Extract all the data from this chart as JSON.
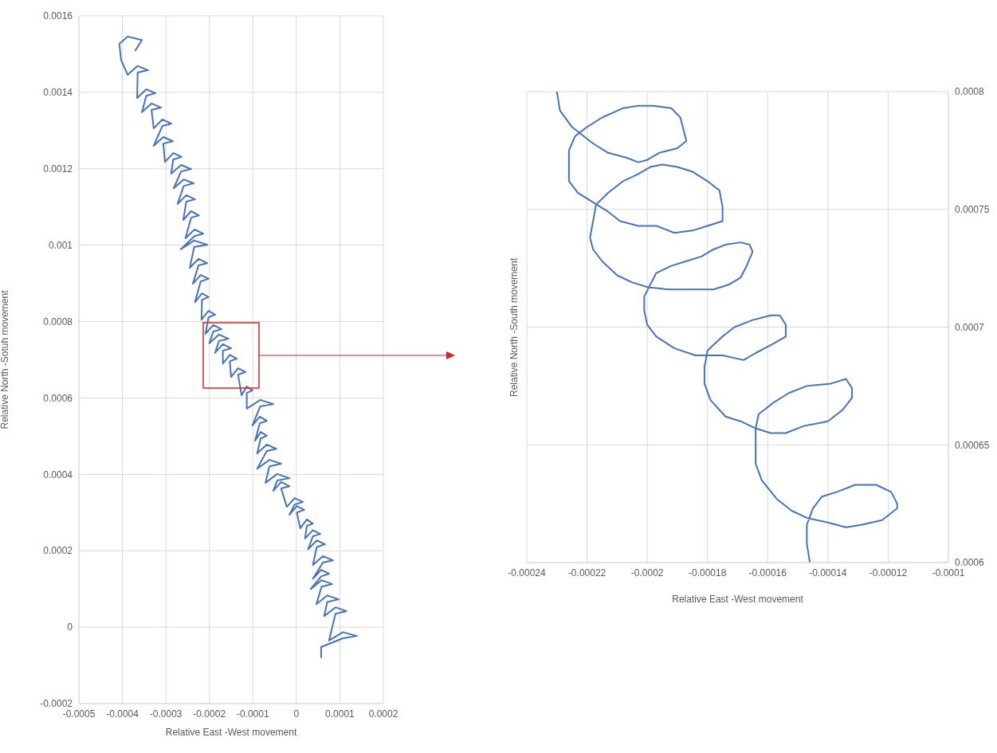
{
  "chart_data": [
    {
      "type": "line",
      "xlabel": "Relative East -West movement",
      "ylabel": "Relative North -Sotuh movement",
      "color": "#4472c4",
      "grid": true,
      "marker": "none",
      "xlim": [
        -0.0005,
        0.0002
      ],
      "xticks": [
        -0.0005,
        -0.0004,
        -0.0003,
        -0.0002,
        -0.0001,
        0,
        0.0001,
        0.0002
      ],
      "ylim": [
        -0.0002,
        0.0016
      ],
      "yticks": [
        -0.0002,
        0,
        0.0002,
        0.0004,
        0.0006,
        0.0008,
        0.001,
        0.0012,
        0.0014,
        0.0016
      ],
      "x": [
        -0.00037,
        -0.000355,
        -0.000388,
        -0.000407,
        -0.000403,
        -0.000388,
        -0.000365,
        -0.000341,
        -0.000365,
        -0.000366,
        -0.000345,
        -0.000324,
        -0.000345,
        -0.000355,
        -0.000333,
        -0.000311,
        -0.000333,
        -0.000328,
        -0.000308,
        -0.000288,
        -0.000308,
        -0.000328,
        -0.000306,
        -0.000284,
        -0.000306,
        -0.000302,
        -0.000283,
        -0.000264,
        -0.000283,
        -0.000288,
        -0.000265,
        -0.000242,
        -0.000265,
        -0.000282,
        -0.000259,
        -0.000236,
        -0.000259,
        -0.000273,
        -0.000253,
        -0.000233,
        -0.000253,
        -0.00026,
        -0.000242,
        -0.000224,
        -0.000242,
        -0.000255,
        -0.000234,
        -0.000214,
        -0.000234,
        -0.000266,
        -0.000235,
        -0.000205,
        -0.000235,
        -0.000245,
        -0.000225,
        -0.000205,
        -0.000225,
        -0.000238,
        -0.00022,
        -0.000202,
        -0.00022,
        -0.000233,
        -0.000217,
        -0.000202,
        -0.000217,
        -0.000218,
        -0.000202,
        -0.000187,
        -0.000202,
        -0.000209,
        -0.000191,
        -0.000172,
        -0.000191,
        -0.0002,
        -0.000178,
        -0.000156,
        -0.000178,
        -0.000187,
        -0.000169,
        -0.00015,
        -0.000169,
        -0.000169,
        -0.000153,
        -0.000137,
        -0.000153,
        -0.00015,
        -0.000134,
        -0.000117,
        -0.000134,
        -0.000126,
        -0.000114,
        -0.000101,
        -0.000114,
        -0.000114,
        -8.3e-05,
        -5.3e-05,
        -8.3e-05,
        -0.000101,
        -8.4e-05,
        -6.8e-05,
        -8.4e-05,
        -9.5e-05,
        -8.2e-05,
        -6.8e-05,
        -8.2e-05,
        -9e-05,
        -6.8e-05,
        -4.6e-05,
        -6.8e-05,
        -9e-05,
        -6.2e-05,
        -3.5e-05,
        -6.2e-05,
        -7.1e-05,
        -4.4e-05,
        -1.6e-05,
        -4.4e-05,
        -5.3e-05,
        -3.5e-05,
        -1.6e-05,
        -3.5e-05,
        -2.2e-05,
        -4e-06,
        1.5e-05,
        -4e-06,
        -1.6e-05,
        1e-06,
        1.8e-05,
        1e-06,
        9e-06,
        2.4e-05,
        3.8e-05,
        2.4e-05,
        2e-05,
        3.8e-05,
        5.5e-05,
        3.8e-05,
        2.7e-05,
        4.7e-05,
        6.6e-05,
        4.7e-05,
        3.8e-05,
        6.1e-05,
        8.4e-05,
        6.1e-05,
        3.8e-05,
        5.7e-05,
        7.5e-05,
        5.7e-05,
        3.3e-05,
        5.8e-05,
        8.2e-05,
        5.8e-05,
        4.6e-05,
        7.1e-05,
        9.7e-05,
        7.1e-05,
        6.4e-05,
        9e-05,
        0.000115,
        9e-05,
        7.5e-05,
        0.000107,
        0.000139,
        0.000107,
        5.7e-05,
        5.7e-05
      ],
      "values": [
        0.00151,
        0.001537,
        0.001546,
        0.001527,
        0.001485,
        0.001446,
        0.001469,
        0.001458,
        0.001452,
        0.001385,
        0.001408,
        0.001398,
        0.001391,
        0.001348,
        0.001371,
        0.00136,
        0.001354,
        0.001306,
        0.001329,
        0.001318,
        0.001312,
        0.00126,
        0.001283,
        0.001272,
        0.001266,
        0.001218,
        0.001241,
        0.001231,
        0.001224,
        0.001187,
        0.00121,
        0.001199,
        0.001193,
        0.001149,
        0.001172,
        0.001162,
        0.001155,
        0.001108,
        0.001131,
        0.00112,
        0.001114,
        0.001066,
        0.001089,
        0.001078,
        0.001072,
        0.001018,
        0.001041,
        0.00103,
        0.001024,
        0.000989,
        0.001012,
        0.001001,
        0.000995,
        0.000941,
        0.000964,
        0.000953,
        0.000947,
        0.000899,
        0.000922,
        0.000912,
        0.000905,
        0.000851,
        0.000874,
        0.000864,
        0.000857,
        0.000805,
        0.000828,
        0.000818,
        0.000811,
        0.000768,
        0.000791,
        0.00078,
        0.000774,
        0.000743,
        0.000766,
        0.000755,
        0.000749,
        0.000718,
        0.000741,
        0.00073,
        0.000724,
        0.00069,
        0.000713,
        0.000703,
        0.000696,
        0.000655,
        0.000678,
        0.000668,
        0.000661,
        0.000607,
        0.00063,
        0.00062,
        0.000613,
        0.000572,
        0.000595,
        0.000584,
        0.000578,
        0.000528,
        0.000551,
        0.00054,
        0.000534,
        0.000488,
        0.000511,
        0.000501,
        0.000494,
        0.000455,
        0.000478,
        0.000467,
        0.000461,
        0.000415,
        0.000438,
        0.000428,
        0.000421,
        0.000378,
        0.000401,
        0.00039,
        0.000384,
        0.000357,
        0.00038,
        0.000369,
        0.000363,
        0.000315,
        0.000338,
        0.000328,
        0.000321,
        0.000294,
        0.000317,
        0.000307,
        0.0003,
        0.000259,
        0.000282,
        0.000271,
        0.000265,
        0.000232,
        0.000254,
        0.000244,
        0.000238,
        0.000204,
        0.000227,
        0.000217,
        0.00021,
        0.000163,
        0.000186,
        0.000175,
        0.000169,
        0.000127,
        0.00015,
        0.00014,
        0.000133,
        0.0001,
        0.000123,
        0.000113,
        0.000106,
        6e-05,
        8.3e-05,
        7.3e-05,
        6.6e-05,
        2.9e-05,
        5.2e-05,
        4.2e-05,
        3.5e-05,
        -3.5e-05,
        -1.3e-05,
        -2.3e-05,
        -2.9e-05,
        -5.2e-05,
        -7.9e-05
      ]
    },
    {
      "type": "line",
      "xlabel": "Relative East -West movement",
      "ylabel": "Relative North -South movement",
      "color": "#4472c4",
      "grid": true,
      "marker": "none",
      "xlim": [
        -0.00024,
        -0.0001
      ],
      "xticks": [
        -0.00024,
        -0.00022,
        -0.0002,
        -0.00018,
        -0.00016,
        -0.00014,
        -0.00012,
        -0.0001
      ],
      "ylim": [
        0.0006,
        0.0008
      ],
      "yticks": [
        0.0006,
        0.00065,
        0.0007,
        0.00075,
        0.0008
      ],
      "x": [
        -0.00023,
        -0.000229,
        -0.000225,
        -0.000222,
        -0.000218,
        -0.000213,
        -0.000207,
        -0.000203,
        -0.0002,
        -0.000196,
        -0.00019,
        -0.000187,
        -0.000188,
        -0.000189,
        -0.000192,
        -0.000198,
        -0.000203,
        -0.000208,
        -0.000215,
        -0.00022,
        -0.000224,
        -0.000226,
        -0.000226,
        -0.000226,
        -0.000223,
        -0.000218,
        -0.000213,
        -0.000209,
        -0.000203,
        -0.000197,
        -0.000191,
        -0.000185,
        -0.00018,
        -0.000175,
        -0.000175,
        -0.000176,
        -0.00018,
        -0.000185,
        -0.00019,
        -0.000195,
        -0.000199,
        -0.000203,
        -0.000208,
        -0.000213,
        -0.000217,
        -0.000218,
        -0.000219,
        -0.000218,
        -0.000215,
        -0.00021,
        -0.000205,
        -0.0002,
        -0.000193,
        -0.000186,
        -0.000178,
        -0.000173,
        -0.000169,
        -0.000167,
        -0.000165,
        -0.000166,
        -0.000169,
        -0.000174,
        -0.000178,
        -0.000182,
        -0.000187,
        -0.000192,
        -0.000197,
        -0.000199,
        -0.000201,
        -0.000201,
        -0.0002,
        -0.000197,
        -0.000191,
        -0.000184,
        -0.000175,
        -0.000168,
        -0.000164,
        -0.000158,
        -0.000154,
        -0.000154,
        -0.000156,
        -0.000159,
        -0.000165,
        -0.000171,
        -0.000175,
        -0.00018,
        -0.000181,
        -0.000181,
        -0.000179,
        -0.000174,
        -0.000169,
        -0.000164,
        -0.000159,
        -0.000154,
        -0.000148,
        -0.00014,
        -0.000135,
        -0.000132,
        -0.000132,
        -0.000134,
        -0.000139,
        -0.000147,
        -0.000153,
        -0.000158,
        -0.000163,
        -0.000164,
        -0.000164,
        -0.000164,
        -0.000162,
        -0.000157,
        -0.000152,
        -0.000147,
        -0.00014,
        -0.000134,
        -0.000129,
        -0.000122,
        -0.000117,
        -0.000117,
        -0.000119,
        -0.000124,
        -0.000131,
        -0.000137,
        -0.000142,
        -0.000145,
        -0.000147,
        -0.000147,
        -0.000146
      ],
      "values": [
        0.0008,
        0.000792,
        0.000785,
        0.000782,
        0.000778,
        0.000774,
        0.000772,
        0.00077,
        0.000771,
        0.000774,
        0.000776,
        0.000779,
        0.000784,
        0.000789,
        0.000793,
        0.000794,
        0.000794,
        0.000793,
        0.000789,
        0.000785,
        0.000781,
        0.000775,
        0.000768,
        0.000762,
        0.000757,
        0.000753,
        0.000749,
        0.000745,
        0.000743,
        0.000743,
        0.00074,
        0.000741,
        0.000743,
        0.000745,
        0.000751,
        0.000758,
        0.000762,
        0.000766,
        0.000768,
        0.000769,
        0.000768,
        0.000765,
        0.000762,
        0.000757,
        0.000752,
        0.000745,
        0.000738,
        0.000733,
        0.000728,
        0.000722,
        0.000719,
        0.000717,
        0.000716,
        0.000716,
        0.000716,
        0.000718,
        0.000721,
        0.000726,
        0.000732,
        0.000735,
        0.000736,
        0.000735,
        0.000733,
        0.00073,
        0.000728,
        0.000726,
        0.000723,
        0.000718,
        0.000713,
        0.000707,
        0.000701,
        0.000696,
        0.000691,
        0.000688,
        0.000688,
        0.000686,
        0.000689,
        0.000693,
        0.000696,
        0.000701,
        0.000705,
        0.000705,
        0.000703,
        0.0007,
        0.000696,
        0.00069,
        0.000683,
        0.000676,
        0.000669,
        0.000662,
        0.00066,
        0.000657,
        0.000655,
        0.000655,
        0.000658,
        0.00066,
        0.000665,
        0.00067,
        0.000674,
        0.000678,
        0.000676,
        0.000675,
        0.000672,
        0.000668,
        0.000663,
        0.000657,
        0.000649,
        0.000642,
        0.000635,
        0.000627,
        0.000622,
        0.000619,
        0.000617,
        0.000615,
        0.000616,
        0.000618,
        0.000623,
        0.000625,
        0.00063,
        0.000633,
        0.000633,
        0.00063,
        0.000628,
        0.000623,
        0.000616,
        0.000608,
        0.0006
      ]
    }
  ]
}
